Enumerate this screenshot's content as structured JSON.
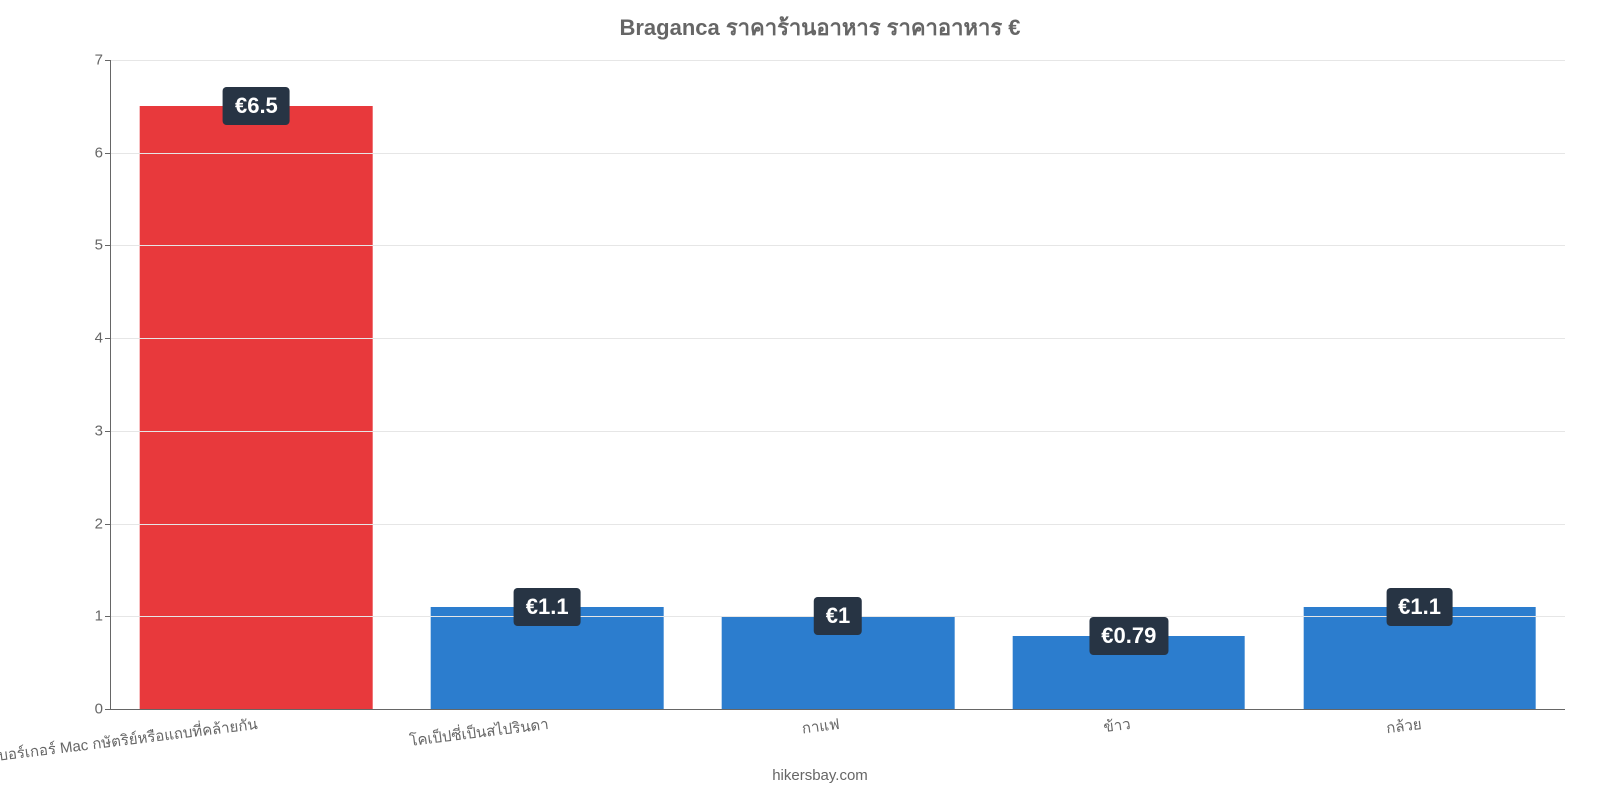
{
  "chart": {
    "type": "bar",
    "title": "Braganca ราคาร้านอาหาร ราคาอาหาร €",
    "title_fontsize": 22,
    "title_color": "#666666",
    "background_color": "#ffffff",
    "grid_color": "#e6e6e6",
    "axis_color": "#666666",
    "ylim": [
      0,
      7
    ],
    "ytick_step": 1,
    "tick_fontsize": 15,
    "tick_color": "#666666",
    "xlabel_fontsize": 15,
    "xlabel_rotation_deg": -7,
    "bar_width_pct": 80,
    "categories": [
      "เบอร์เกอร์ Mac กษัตริย์หรือแถบที่คล้ายกัน",
      "โคเป็ปซี่เป็นสไปรินดา",
      "กาแฟ",
      "ข้าว",
      "กล้วย"
    ],
    "values": [
      6.5,
      1.1,
      1.0,
      0.79,
      1.1
    ],
    "value_labels": [
      "€6.5",
      "€1.1",
      "€1",
      "€0.79",
      "€1.1"
    ],
    "bar_colors": [
      "#e8393c",
      "#2c7dce",
      "#2c7dce",
      "#2c7dce",
      "#2c7dce"
    ],
    "value_label_bg": "#273444",
    "value_label_fontsize": 22,
    "value_label_color": "#ffffff",
    "attribution": "hikersbay.com",
    "attribution_fontsize": 15,
    "attribution_color": "#666666"
  }
}
